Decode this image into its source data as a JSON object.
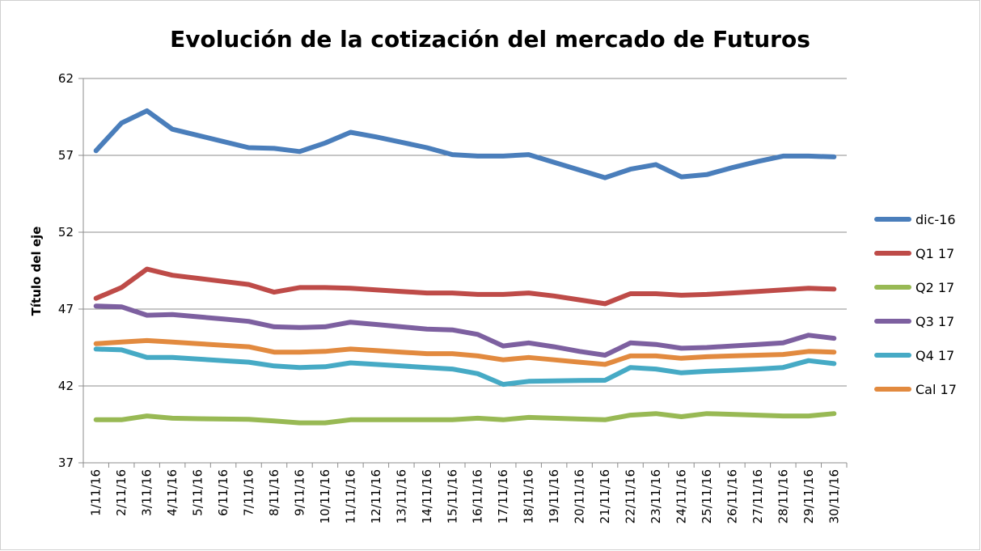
{
  "chart_data": {
    "type": "line",
    "title": "Evolución de la cotización del mercado de Futuros",
    "xlabel": "",
    "ylabel": "Título del eje",
    "ylim": [
      37,
      62
    ],
    "yticks": [
      37,
      42,
      47,
      52,
      57,
      62
    ],
    "grid": true,
    "legend_position": "right",
    "categories": [
      "1/11/16",
      "2/11/16",
      "3/11/16",
      "4/11/16",
      "5/11/16",
      "6/11/16",
      "7/11/16",
      "8/11/16",
      "9/11/16",
      "10/11/16",
      "11/11/16",
      "12/11/16",
      "13/11/16",
      "14/11/16",
      "15/11/16",
      "16/11/16",
      "17/11/16",
      "18/11/16",
      "19/11/16",
      "20/11/16",
      "21/11/16",
      "22/11/16",
      "23/11/16",
      "24/11/16",
      "25/11/16",
      "26/11/16",
      "27/11/16",
      "28/11/16",
      "29/11/16",
      "30/11/16"
    ],
    "series": [
      {
        "name": "dic-16",
        "color": "#4a7ebb",
        "values": [
          57.3,
          59.1,
          59.9,
          58.7,
          58.3,
          57.9,
          57.5,
          57.45,
          57.25,
          57.8,
          58.5,
          58.2,
          57.85,
          57.5,
          57.05,
          56.95,
          56.95,
          57.05,
          56.55,
          56.05,
          55.55,
          56.1,
          56.4,
          55.6,
          55.75,
          56.2,
          56.6,
          56.95,
          56.95,
          56.9
        ]
      },
      {
        "name": "Q1 17",
        "color": "#be4b48",
        "values": [
          47.7,
          48.4,
          49.6,
          49.2,
          49.0,
          48.8,
          48.6,
          48.1,
          48.4,
          48.4,
          48.35,
          48.25,
          48.15,
          48.05,
          48.05,
          47.95,
          47.95,
          48.05,
          47.85,
          47.6,
          47.35,
          48.0,
          48.0,
          47.9,
          47.95,
          48.05,
          48.15,
          48.25,
          48.35,
          48.3
        ]
      },
      {
        "name": "Q2 17",
        "color": "#98b954",
        "values": [
          39.8,
          39.8,
          40.05,
          39.9,
          39.87,
          39.85,
          39.83,
          39.72,
          39.6,
          39.6,
          39.8,
          39.8,
          39.8,
          39.8,
          39.8,
          39.9,
          39.8,
          39.95,
          39.9,
          39.85,
          39.8,
          40.1,
          40.2,
          40.0,
          40.2,
          40.15,
          40.1,
          40.05,
          40.05,
          40.2
        ]
      },
      {
        "name": "Q3 17",
        "color": "#7d60a0",
        "values": [
          47.2,
          47.15,
          46.6,
          46.65,
          46.5,
          46.35,
          46.2,
          45.85,
          45.8,
          45.85,
          46.15,
          46.0,
          45.85,
          45.7,
          45.65,
          45.35,
          44.6,
          44.8,
          44.55,
          44.25,
          44.0,
          44.8,
          44.7,
          44.45,
          44.5,
          44.6,
          44.7,
          44.8,
          45.3,
          45.1
        ]
      },
      {
        "name": "Q4 17",
        "color": "#46aac5",
        "values": [
          44.4,
          44.35,
          43.85,
          43.85,
          43.75,
          43.65,
          43.55,
          43.3,
          43.2,
          43.25,
          43.5,
          43.4,
          43.3,
          43.2,
          43.1,
          42.8,
          42.1,
          42.3,
          42.33,
          42.35,
          42.37,
          43.2,
          43.1,
          42.85,
          42.95,
          43.02,
          43.1,
          43.2,
          43.65,
          43.45
        ]
      },
      {
        "name": "Cal 17",
        "color": "#e28a3f",
        "values": [
          44.75,
          44.85,
          44.95,
          44.85,
          44.75,
          44.65,
          44.55,
          44.2,
          44.2,
          44.25,
          44.4,
          44.3,
          44.2,
          44.1,
          44.1,
          43.95,
          43.7,
          43.85,
          43.7,
          43.55,
          43.4,
          43.95,
          43.95,
          43.8,
          43.9,
          43.95,
          44.0,
          44.05,
          44.25,
          44.2
        ]
      }
    ]
  }
}
